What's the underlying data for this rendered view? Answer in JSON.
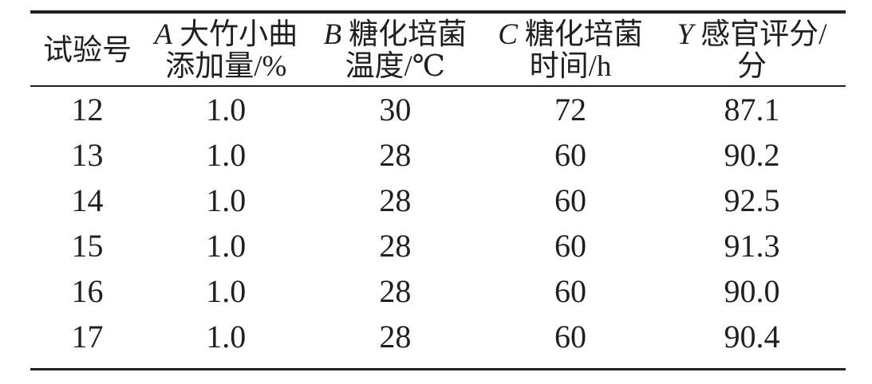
{
  "table": {
    "columns": [
      {
        "var": "",
        "line1": "试验号",
        "line2": ""
      },
      {
        "var": "A",
        "line1": "大竹小曲",
        "line2": "添加量/%"
      },
      {
        "var": "B",
        "line1": "糖化培菌",
        "line2": "温度/℃"
      },
      {
        "var": "C",
        "line1": "糖化培菌",
        "line2": "时间/h"
      },
      {
        "var": "Y",
        "line1": "感官评分/",
        "line2": "分"
      }
    ],
    "rows": [
      [
        "12",
        "1.0",
        "30",
        "72",
        "87.1"
      ],
      [
        "13",
        "1.0",
        "28",
        "60",
        "90.2"
      ],
      [
        "14",
        "1.0",
        "28",
        "60",
        "92.5"
      ],
      [
        "15",
        "1.0",
        "28",
        "60",
        "91.3"
      ],
      [
        "16",
        "1.0",
        "28",
        "60",
        "90.0"
      ],
      [
        "17",
        "1.0",
        "28",
        "60",
        "90.4"
      ]
    ]
  },
  "colors": {
    "text": "#1f1f1f",
    "rule": "#231f20",
    "background": "#ffffff"
  }
}
